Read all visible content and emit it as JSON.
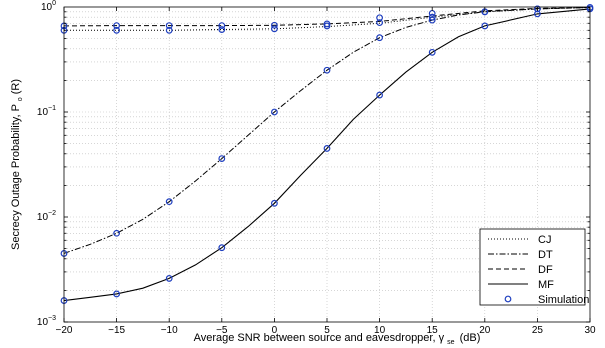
{
  "chart_data": {
    "type": "line",
    "xlabel": "Average SNR between source and eavesdropper,",
    "xlabel_symbol": "γ",
    "xlabel_subscript": "se",
    "xlabel_unit": "(dB)",
    "ylabel": "Secrecy Outage Probability, P",
    "ylabel_subscript": "o",
    "ylabel_tail": "(R)",
    "xlim": [
      -20,
      30
    ],
    "ylim": [
      0.001,
      1
    ],
    "yscale": "log",
    "grid": true,
    "legend_position": "bottom-right",
    "x_ticks": [
      "−20",
      "−15",
      "−10",
      "−5",
      "0",
      "5",
      "10",
      "15",
      "20",
      "25",
      "30"
    ],
    "y_ticks": [
      {
        "base": "10",
        "exp": "−3"
      },
      {
        "base": "10",
        "exp": "−2"
      },
      {
        "base": "10",
        "exp": "−1"
      },
      {
        "base": "10",
        "exp": "0"
      }
    ],
    "series": [
      {
        "name": "CJ",
        "style": "dotted",
        "x": [
          -20,
          -15,
          -10,
          -5,
          0,
          5,
          10,
          15,
          20,
          25,
          30
        ],
        "y": [
          0.6,
          0.6,
          0.6,
          0.61,
          0.62,
          0.65,
          0.7,
          0.8,
          0.9,
          0.96,
          0.99
        ]
      },
      {
        "name": "DT",
        "style": "dashdot",
        "x": [
          -20,
          -17.5,
          -15,
          -12.5,
          -10,
          -7.5,
          -5,
          -2.5,
          0,
          2.5,
          5,
          7.5,
          10,
          12.5,
          15,
          17.5,
          20,
          25,
          30
        ],
        "y": [
          0.0045,
          0.0055,
          0.007,
          0.0095,
          0.014,
          0.022,
          0.036,
          0.06,
          0.1,
          0.16,
          0.25,
          0.37,
          0.51,
          0.64,
          0.75,
          0.84,
          0.9,
          0.96,
          0.99
        ]
      },
      {
        "name": "DF",
        "style": "dashed",
        "x": [
          -20,
          -15,
          -10,
          -5,
          0,
          5,
          10,
          15,
          20,
          25,
          30
        ],
        "y": [
          0.66,
          0.665,
          0.665,
          0.665,
          0.67,
          0.69,
          0.73,
          0.82,
          0.92,
          0.97,
          0.99
        ]
      },
      {
        "name": "MF",
        "style": "solid",
        "x": [
          -20,
          -17.5,
          -15,
          -12.5,
          -10,
          -7.5,
          -5,
          -2.5,
          0,
          2.5,
          5,
          7.5,
          10,
          12.5,
          15,
          17.5,
          20,
          25,
          30
        ],
        "y": [
          0.0016,
          0.00172,
          0.00185,
          0.0021,
          0.0026,
          0.0035,
          0.0051,
          0.0081,
          0.0135,
          0.025,
          0.045,
          0.085,
          0.145,
          0.24,
          0.37,
          0.52,
          0.66,
          0.86,
          0.96
        ]
      }
    ],
    "simulation": {
      "name": "Simulation",
      "marker": "circle",
      "color": "#1f3fbf",
      "points": [
        {
          "x": -20,
          "y": 0.6
        },
        {
          "x": -15,
          "y": 0.6
        },
        {
          "x": -10,
          "y": 0.6
        },
        {
          "x": -5,
          "y": 0.61
        },
        {
          "x": 0,
          "y": 0.62
        },
        {
          "x": 5,
          "y": 0.66
        },
        {
          "x": 10,
          "y": 0.71
        },
        {
          "x": 15,
          "y": 0.8
        },
        {
          "x": 20,
          "y": 0.9
        },
        {
          "x": 25,
          "y": 0.96
        },
        {
          "x": 30,
          "y": 0.99
        },
        {
          "x": -20,
          "y": 0.66
        },
        {
          "x": -15,
          "y": 0.665
        },
        {
          "x": -10,
          "y": 0.665
        },
        {
          "x": -5,
          "y": 0.665
        },
        {
          "x": 0,
          "y": 0.67
        },
        {
          "x": 5,
          "y": 0.69
        },
        {
          "x": 10,
          "y": 0.79
        },
        {
          "x": 15,
          "y": 0.87
        },
        {
          "x": -20,
          "y": 0.0045
        },
        {
          "x": -15,
          "y": 0.007
        },
        {
          "x": -10,
          "y": 0.014
        },
        {
          "x": -5,
          "y": 0.036
        },
        {
          "x": 0,
          "y": 0.1
        },
        {
          "x": 5,
          "y": 0.25
        },
        {
          "x": 10,
          "y": 0.51
        },
        {
          "x": 15,
          "y": 0.75
        },
        {
          "x": 20,
          "y": 0.9
        },
        {
          "x": 25,
          "y": 0.96
        },
        {
          "x": -20,
          "y": 0.0016
        },
        {
          "x": -15,
          "y": 0.00185
        },
        {
          "x": -10,
          "y": 0.0026
        },
        {
          "x": -5,
          "y": 0.0051
        },
        {
          "x": 0,
          "y": 0.0135
        },
        {
          "x": 5,
          "y": 0.045
        },
        {
          "x": 10,
          "y": 0.145
        },
        {
          "x": 15,
          "y": 0.37
        },
        {
          "x": 20,
          "y": 0.66
        },
        {
          "x": 25,
          "y": 0.86
        },
        {
          "x": 30,
          "y": 0.96
        }
      ]
    }
  }
}
